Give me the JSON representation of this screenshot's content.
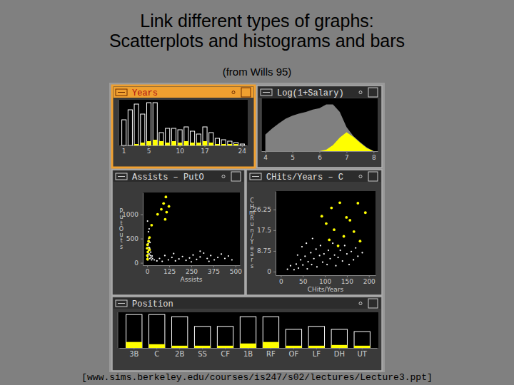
{
  "page": {
    "title": [
      "Link different types of graphs:",
      "Scatterplots and histograms and bars"
    ],
    "subtitle": "(from Wills 95)",
    "source": "[www.sims.berkeley.edu/courses/is247/s02/lectures/Lecture3.ppt]"
  },
  "chart_data": [
    {
      "type": "bar",
      "title": "Years",
      "categories": [
        "1",
        null,
        null,
        null,
        "5",
        null,
        null,
        null,
        null,
        "10",
        null,
        null,
        null,
        "17",
        null,
        null,
        null,
        null,
        null,
        "24"
      ],
      "series": [
        {
          "color": "#ffffff",
          "values": [
            18,
            25,
            29,
            22,
            30,
            30,
            9,
            12,
            12,
            11,
            13,
            10,
            8,
            13,
            9,
            5,
            4,
            3,
            2,
            1
          ]
        },
        {
          "color": "#ffff00",
          "values": [
            0,
            0,
            1,
            2,
            3,
            4,
            3,
            2,
            3,
            2,
            3,
            2,
            2,
            3,
            2,
            1,
            1,
            1,
            1,
            0
          ]
        }
      ],
      "ylim": [
        0,
        32
      ],
      "tick_labels": "x"
    },
    {
      "type": "area",
      "title": "Log(1+Salary)",
      "x": [
        4,
        4.25,
        4.5,
        4.75,
        5,
        5.25,
        5.5,
        5.75,
        6,
        6.25,
        6.5,
        6.75,
        7,
        7.25,
        7.5,
        7.75,
        8
      ],
      "series": [
        {
          "color": "#808080",
          "values": [
            22,
            30,
            37,
            43,
            47,
            50,
            52,
            55,
            57,
            62,
            62,
            52,
            32,
            20,
            12,
            5,
            0
          ]
        },
        {
          "color": "#ffff00",
          "values": [
            0,
            0,
            0,
            0,
            0,
            0,
            0,
            0,
            0,
            2,
            8,
            18,
            25,
            19,
            11,
            4,
            0
          ]
        }
      ],
      "xlim": [
        3.85,
        8.15
      ],
      "xticks": [
        4,
        5,
        6,
        7,
        8
      ],
      "ylim": [
        0,
        70
      ],
      "tick_labels": "x"
    },
    {
      "type": "scatter",
      "title": "Assists – PutO",
      "xlabel": "Assists",
      "ylabel": "PutOuts",
      "series": [
        {
          "color": "#ffffff",
          "x": [
            3,
            5,
            8,
            10,
            6,
            12,
            15,
            4,
            18,
            20,
            9,
            7,
            11,
            14,
            2,
            22,
            25,
            28,
            30,
            16,
            40,
            55,
            70,
            85,
            100,
            120,
            140,
            160,
            180,
            200,
            220,
            240,
            260,
            280,
            300,
            320,
            340,
            360,
            380,
            400,
            420,
            440,
            460,
            480,
            300,
            350,
            250,
            150
          ],
          "values": [
            120,
            180,
            250,
            320,
            400,
            180,
            90,
            60,
            150,
            220,
            500,
            640,
            700,
            300,
            860,
            110,
            60,
            140,
            90,
            420,
            60,
            40,
            90,
            30,
            150,
            60,
            110,
            40,
            80,
            130,
            50,
            100,
            160,
            70,
            120,
            200,
            90,
            150,
            60,
            110,
            180,
            90,
            140,
            60,
            240,
            30,
            20,
            190
          ]
        },
        {
          "color": "#ffff00",
          "x": [
            2,
            0,
            4,
            1,
            8,
            13,
            2,
            93,
            123,
            110,
            80,
            102,
            59,
            106,
            25,
            13
          ],
          "values": [
            373,
            300,
            224,
            150,
            448,
            522,
            75,
            1224,
            1164,
            1045,
            1104,
            896,
            1000,
            1358,
            776,
            269
          ]
        }
      ],
      "xlim": [
        -25,
        525
      ],
      "xticks": [
        0,
        125,
        250,
        375,
        500
      ],
      "ylim": [
        -50,
        1450
      ],
      "yticks": [
        0,
        500,
        1000
      ]
    },
    {
      "type": "scatter",
      "title": "CHits/Years – C",
      "xlabel": "CHits/Years",
      "ylabel": "CHmRun/Years",
      "series": [
        {
          "color": "#ffffff",
          "x": [
            15,
            22,
            30,
            35,
            40,
            45,
            50,
            55,
            60,
            62,
            68,
            70,
            75,
            80,
            82,
            88,
            90,
            95,
            98,
            105,
            108,
            112,
            118,
            122,
            125,
            130,
            135,
            140,
            145,
            150,
            155,
            160,
            165,
            170,
            175,
            185,
            48,
            58,
            72,
            38
          ],
          "values": [
            1,
            2.5,
            0.8,
            3.2,
            1.5,
            5,
            2.8,
            6.5,
            1.2,
            4.2,
            8,
            3,
            5.5,
            9.5,
            2,
            6.8,
            11,
            4,
            7.5,
            3,
            9,
            5.5,
            12,
            7,
            2.5,
            6,
            9,
            4.5,
            11,
            7.5,
            3,
            8.5,
            5,
            10,
            6.5,
            8,
            10.5,
            12,
            14,
            7
          ]
        },
        {
          "color": "#ffff00",
          "x": [
            134,
            175,
            157,
            121,
            103,
            143,
            166,
            110,
            130,
            180,
            149,
            93,
            192,
            115
          ],
          "values": [
            29.1,
            28.9,
            21.7,
            17.7,
            20.3,
            14.9,
            16.9,
            13.4,
            10.9,
            12.9,
            22.9,
            23.4,
            24.9,
            26.9
          ]
        }
      ],
      "xlim": [
        -12,
        215
      ],
      "xticks": [
        0,
        50,
        100,
        150,
        200
      ],
      "ylim": [
        -1.5,
        34
      ],
      "yticks": [
        0,
        8.75,
        17.5,
        26.25
      ]
    },
    {
      "type": "bar",
      "title": "Position",
      "categories": [
        "3B",
        "C",
        "2B",
        "SS",
        "CF",
        "1B",
        "RF",
        "OF",
        "LF",
        "DH",
        "UT"
      ],
      "series": [
        {
          "color": "#ffffff",
          "values": [
            45,
            45,
            42,
            29,
            29,
            42,
            42,
            25,
            29,
            25,
            22
          ]
        },
        {
          "color": "#ffff00",
          "values": [
            8,
            5,
            3,
            3,
            3,
            6,
            8,
            3,
            3,
            4,
            3
          ]
        }
      ],
      "ylim": [
        0,
        48
      ],
      "tick_labels": "x"
    }
  ]
}
